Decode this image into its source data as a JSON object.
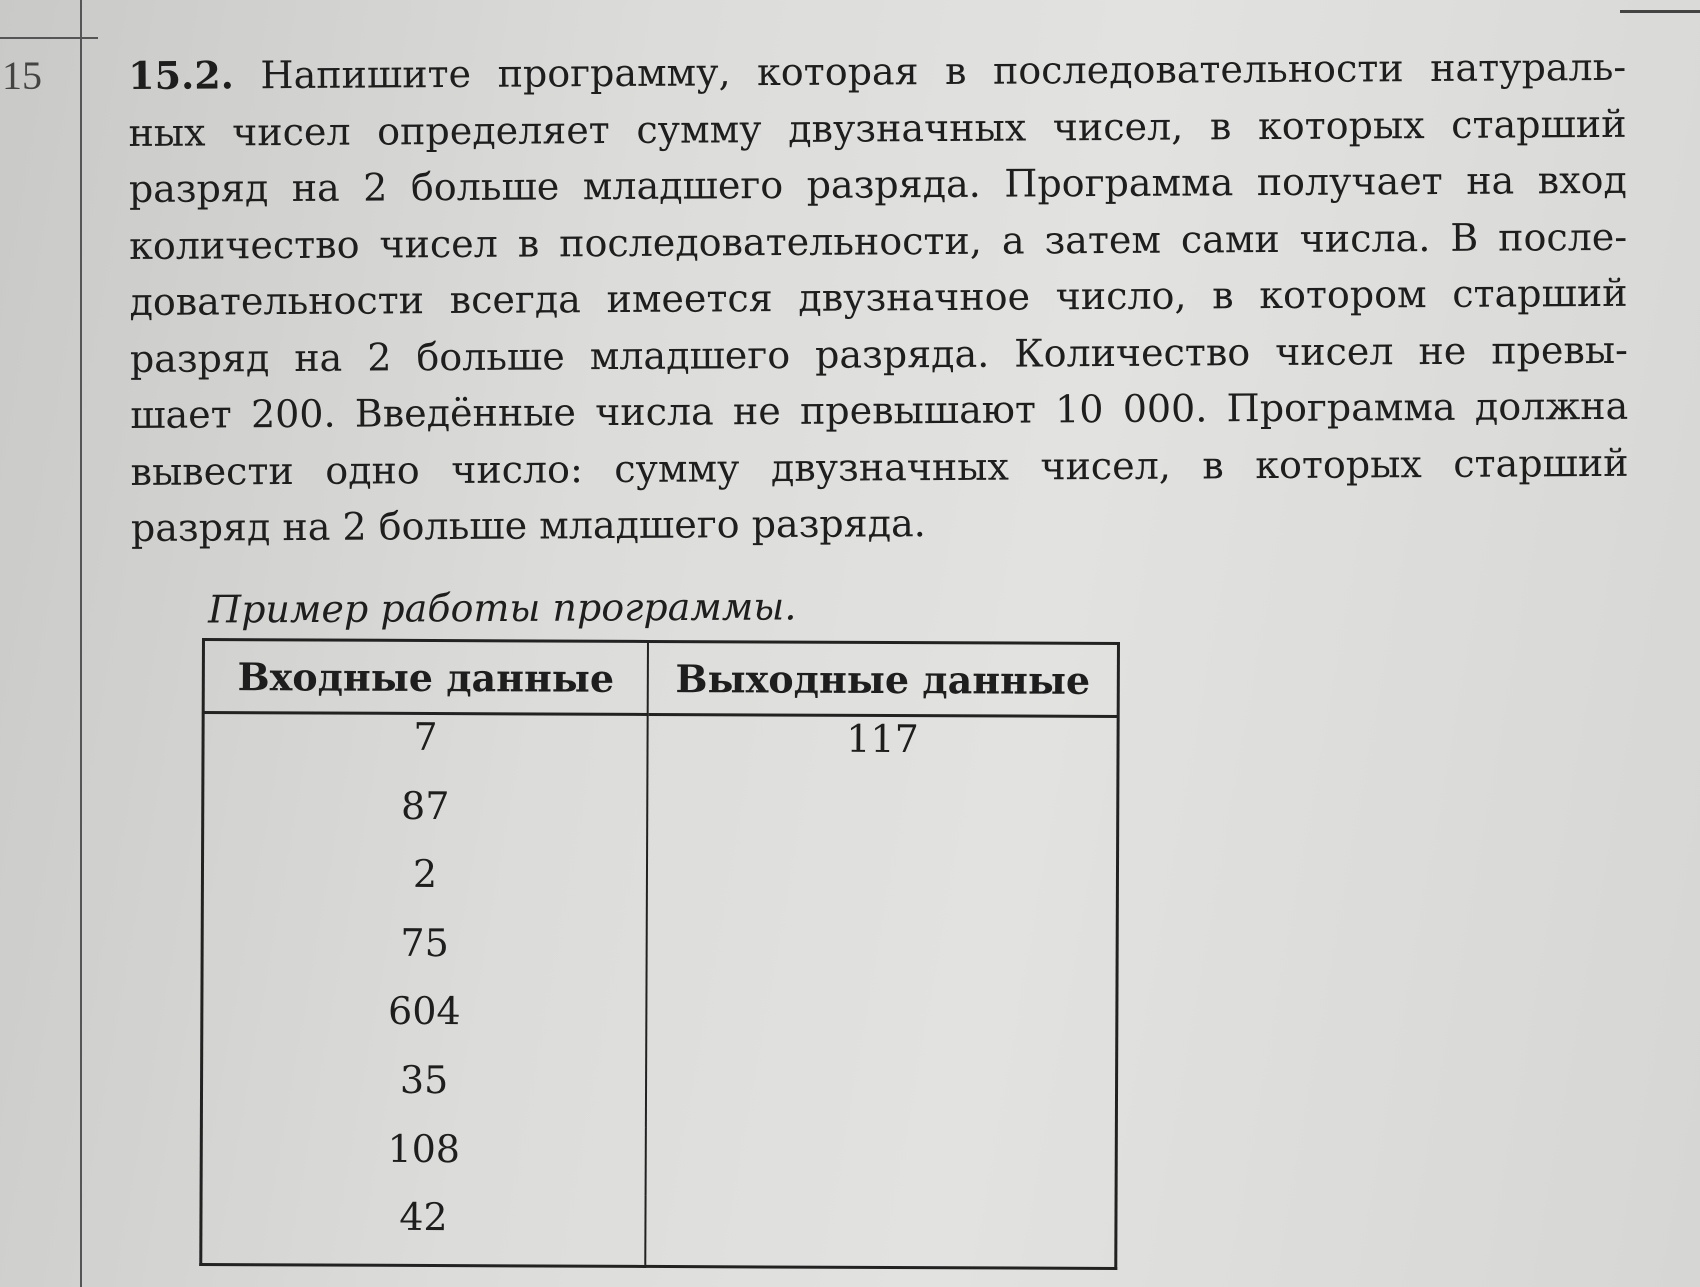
{
  "section_number": "15",
  "task": {
    "number": "15.2.",
    "lines": [
      "Напишите программу, которая в последовательности натураль-",
      "ных чисел определяет сумму двузначных чисел, в которых старший",
      "разряд на 2 больше младшего разряда. Программа получает на вход",
      "количество чисел в последовательности, а затем сами числа. В после-",
      "довательности всегда имеется двузначное число, в котором старший",
      "разряд на 2 больше младшего разряда. Количество чисел не превы-",
      "шает 200. Введённые числа не превышают 10 000. Программа должна",
      "вывести одно число: сумму двузначных чисел, в которых старший",
      "разряд на 2 больше младшего разряда."
    ]
  },
  "example": {
    "caption": "Пример работы программы.",
    "headers": [
      "Входные данные",
      "Выходные данные"
    ],
    "input": [
      "7",
      "87",
      "2",
      "75",
      "604",
      "35",
      "108",
      "42"
    ],
    "output": "117"
  }
}
